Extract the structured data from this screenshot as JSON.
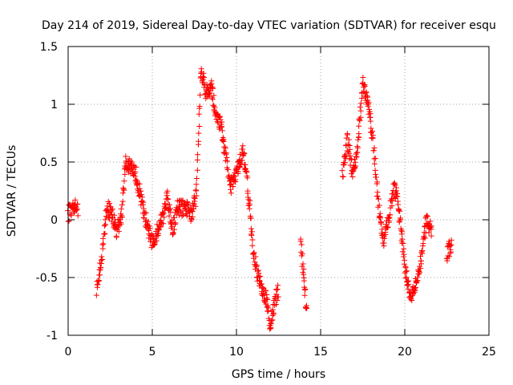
{
  "chart_data": {
    "type": "scatter",
    "title": "Day 214 of 2019, Sidereal Day-to-day VTEC variation (SDTVAR) for receiver esqu",
    "xlabel": "GPS time / hours",
    "ylabel": "SDTVAR / TECUs",
    "xlim": [
      0,
      25
    ],
    "ylim": [
      -1,
      1.5
    ],
    "xticks": [
      0,
      5,
      10,
      15,
      20,
      25
    ],
    "xtick_labels": [
      "0",
      "5",
      "10",
      "15",
      "20",
      "25"
    ],
    "yticks": [
      -1,
      -0.5,
      0,
      0.5,
      1,
      1.5
    ],
    "ytick_labels": [
      "-1",
      "-0.5",
      "0",
      "0.5",
      "1",
      "1.5"
    ],
    "grid": true,
    "marker": "+",
    "series_color": "#ff0000",
    "gap_hours": [
      15,
      16.2
    ],
    "anchors": [
      [
        0.0,
        0.05
      ],
      [
        0.2,
        0.08
      ],
      [
        0.4,
        0.14
      ],
      [
        0.6,
        0.1
      ],
      [
        1.7,
        -0.6
      ],
      [
        2.0,
        -0.3
      ],
      [
        2.3,
        0.1
      ],
      [
        2.6,
        0.05
      ],
      [
        2.9,
        -0.1
      ],
      [
        3.2,
        0.05
      ],
      [
        3.4,
        0.5
      ],
      [
        3.7,
        0.45
      ],
      [
        4.0,
        0.4
      ],
      [
        4.3,
        0.2
      ],
      [
        4.6,
        0.0
      ],
      [
        5.0,
        -0.2
      ],
      [
        5.3,
        -0.1
      ],
      [
        5.6,
        0.0
      ],
      [
        5.9,
        0.2
      ],
      [
        6.2,
        -0.1
      ],
      [
        6.5,
        0.1
      ],
      [
        7.0,
        0.1
      ],
      [
        7.3,
        0.05
      ],
      [
        7.6,
        0.2
      ],
      [
        7.9,
        1.3
      ],
      [
        8.2,
        1.1
      ],
      [
        8.5,
        1.15
      ],
      [
        8.8,
        0.9
      ],
      [
        9.1,
        0.8
      ],
      [
        9.4,
        0.5
      ],
      [
        9.7,
        0.3
      ],
      [
        10.0,
        0.4
      ],
      [
        10.4,
        0.6
      ],
      [
        10.8,
        0.1
      ],
      [
        11.0,
        -0.3
      ],
      [
        11.3,
        -0.5
      ],
      [
        11.8,
        -0.7
      ],
      [
        12.0,
        -0.9
      ],
      [
        12.5,
        -0.6
      ],
      [
        13.8,
        -0.2
      ],
      [
        14.0,
        -0.5
      ],
      [
        14.2,
        -0.85
      ],
      [
        16.3,
        0.4
      ],
      [
        16.6,
        0.7
      ],
      [
        16.9,
        0.4
      ],
      [
        17.2,
        0.6
      ],
      [
        17.5,
        1.2
      ],
      [
        17.8,
        1.05
      ],
      [
        18.1,
        0.7
      ],
      [
        18.4,
        0.2
      ],
      [
        18.7,
        -0.2
      ],
      [
        19.0,
        0.0
      ],
      [
        19.4,
        0.3
      ],
      [
        19.7,
        0.0
      ],
      [
        20.0,
        -0.4
      ],
      [
        20.3,
        -0.65
      ],
      [
        20.6,
        -0.6
      ],
      [
        21.0,
        -0.3
      ],
      [
        21.3,
        0.0
      ],
      [
        21.6,
        -0.1
      ],
      [
        22.5,
        -0.3
      ],
      [
        22.8,
        -0.2
      ]
    ]
  }
}
